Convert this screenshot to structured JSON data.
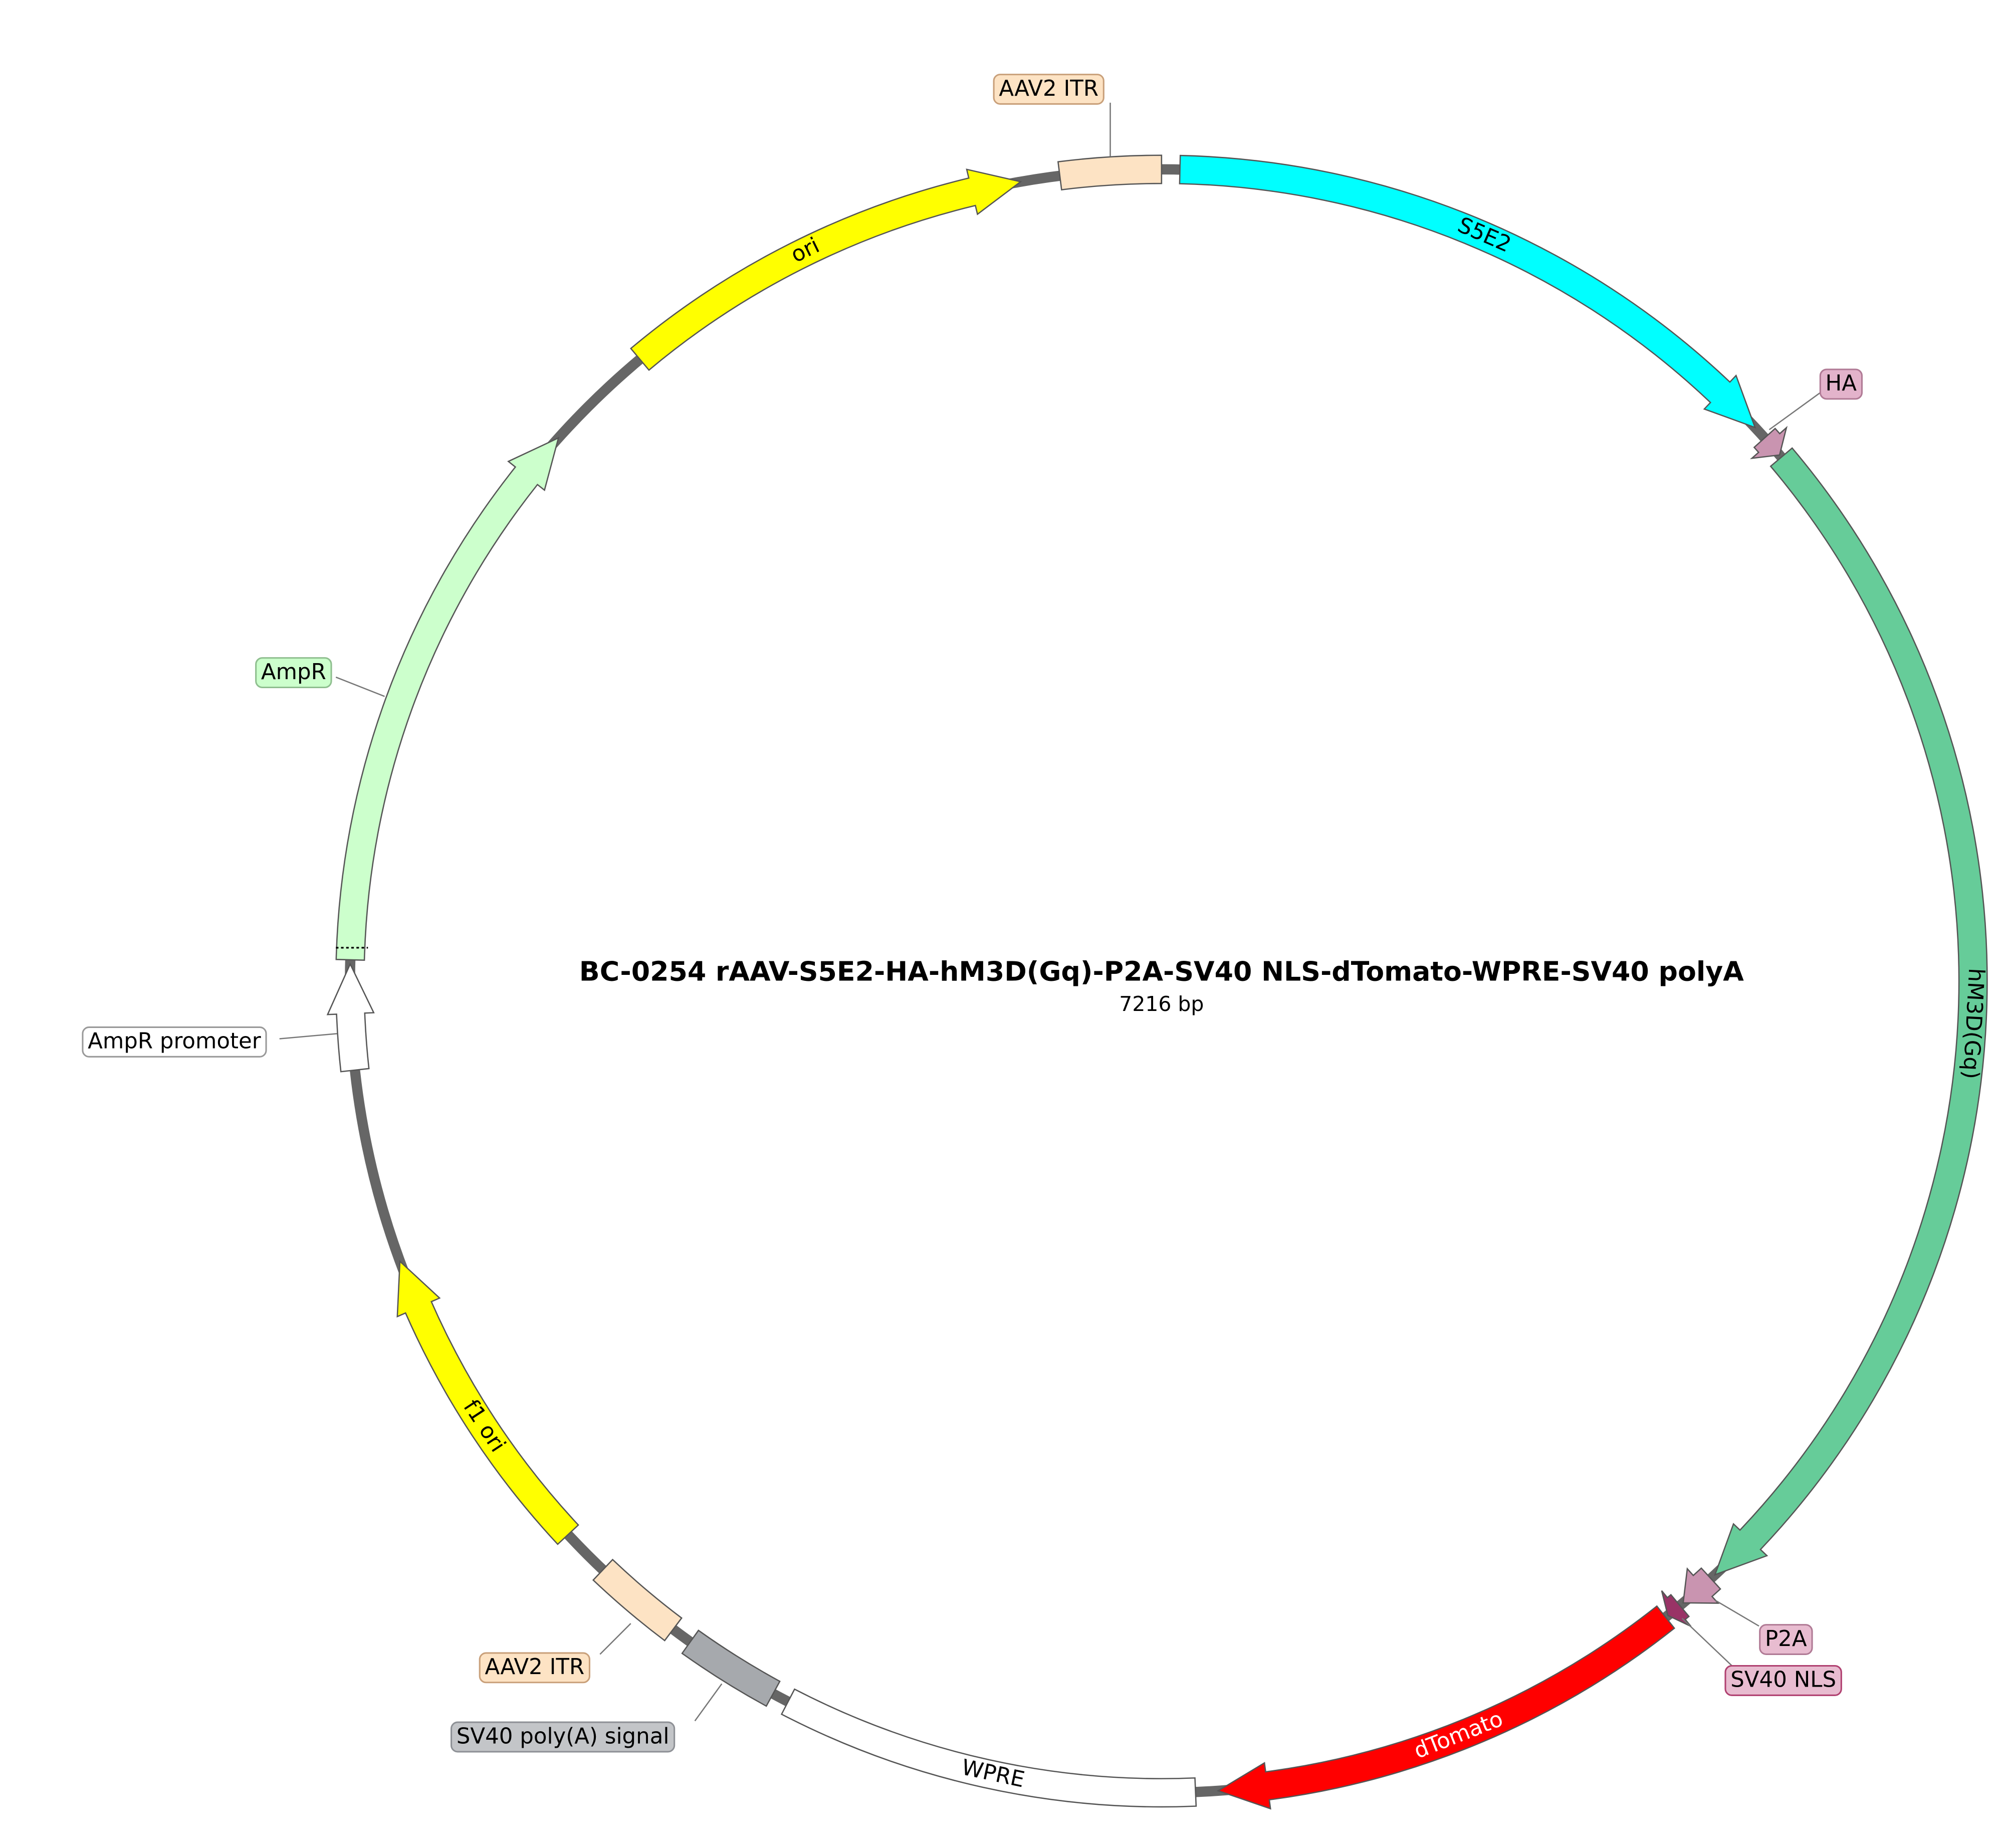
{
  "title": "BC-0254   rAAV-S5E2-HA-hM3D(Gq)-P2A-SV40 NLS-dTomato-WPRE-SV40 polyA",
  "length": "7216 bp",
  "features": [
    {
      "label": "AAV2 ITR"
    },
    {
      "label": "S5E2"
    },
    {
      "label": "HA"
    },
    {
      "label": "hM3D(Gq)"
    },
    {
      "label": "P2A"
    },
    {
      "label": "SV40 NLS"
    },
    {
      "label": "dTomato"
    },
    {
      "label": "WPRE"
    },
    {
      "label": "SV40 poly(A) signal"
    },
    {
      "label": "AAV2 ITR"
    },
    {
      "label": "f1 ori"
    },
    {
      "label": "AmpR promoter"
    },
    {
      "label": "AmpR"
    },
    {
      "label": "ori"
    }
  ]
}
